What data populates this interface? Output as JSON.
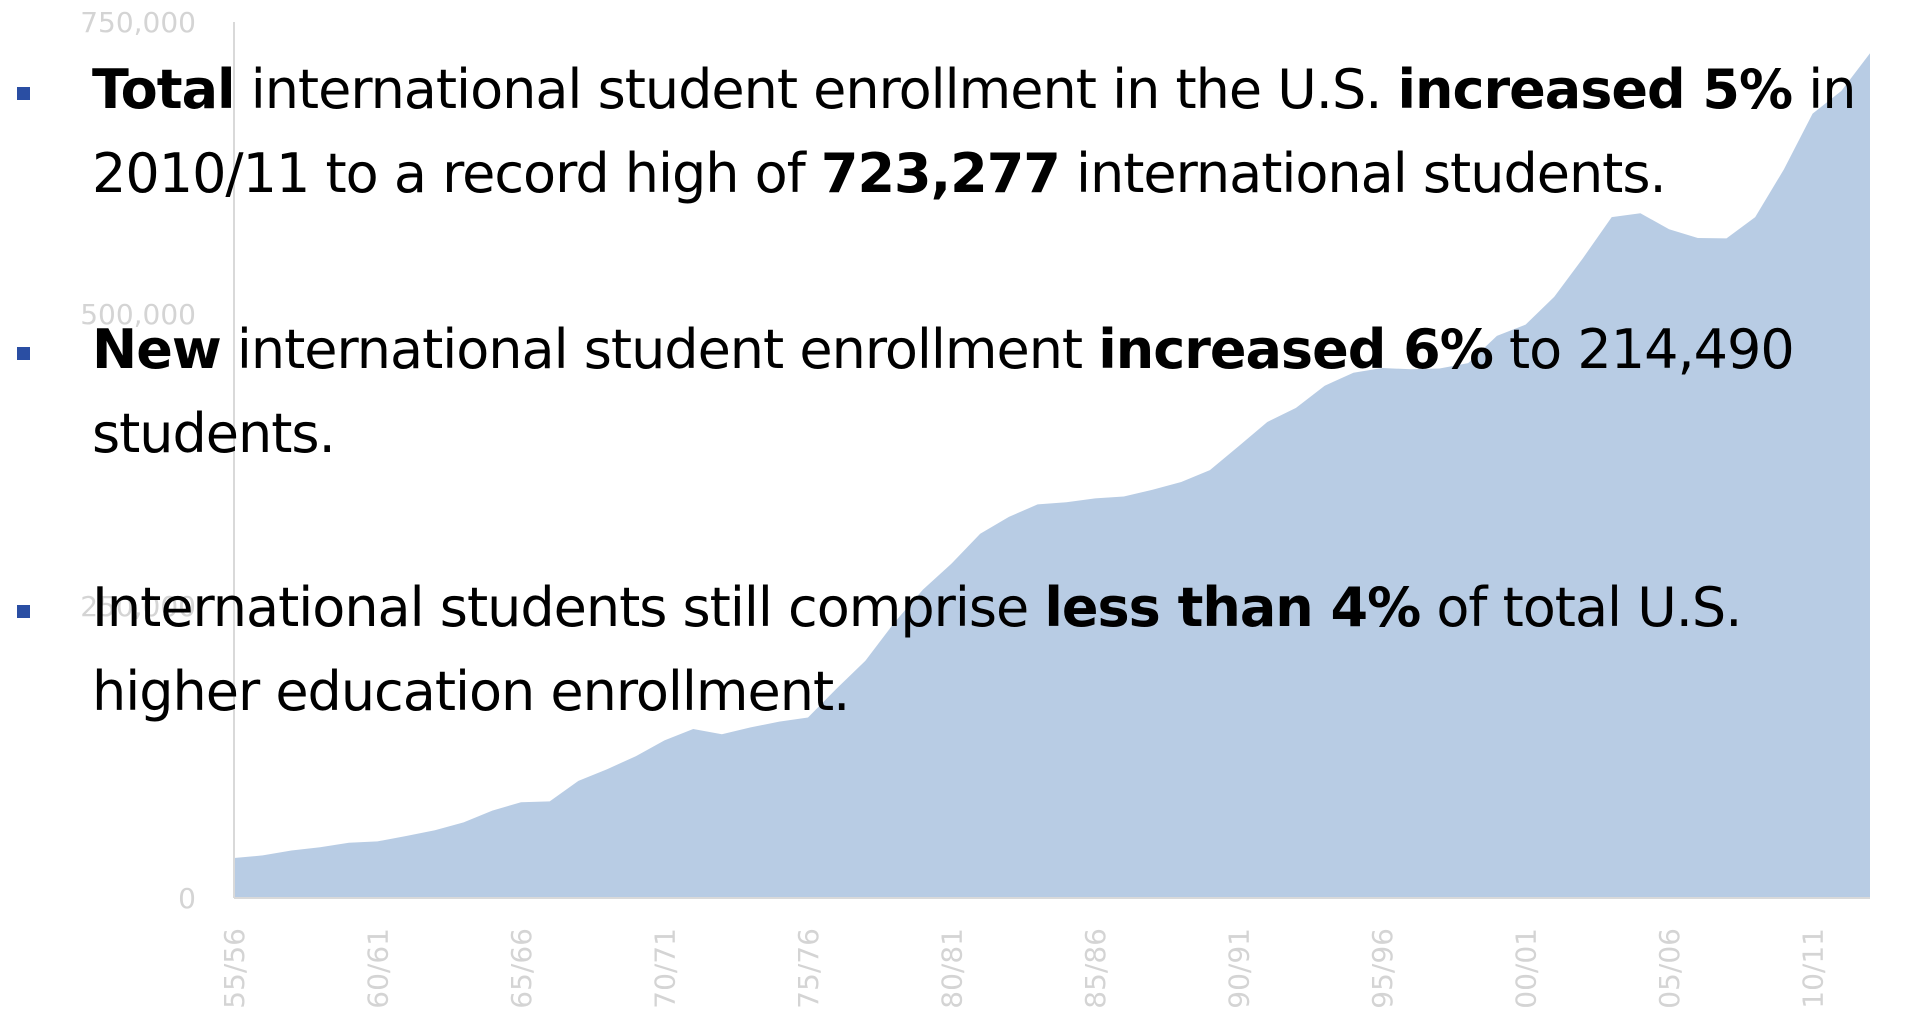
{
  "chart_data": {
    "type": "area",
    "y_ticks": [
      "750,000",
      "500,000",
      "250,000",
      "0"
    ],
    "y_tick_values": [
      750000,
      500000,
      250000,
      0
    ],
    "x_ticks": [
      "55/56",
      "60/61",
      "65/66",
      "70/71",
      "75/76",
      "80/81",
      "85/86",
      "90/91",
      "95/96",
      "00/01",
      "05/06",
      "10/11"
    ],
    "ylim": [
      0,
      750000
    ],
    "color": "#b8cce4",
    "axis_color": "#d9d9d9",
    "values": [
      34232,
      36494,
      40666,
      43391,
      47245,
      48486,
      53107,
      58086,
      64705,
      74814,
      82045,
      82709,
      100262,
      110315,
      121362,
      134959,
      144708,
      140126,
      146097,
      151066,
      154580,
      179344,
      203068,
      235509,
      263938,
      286343,
      311882,
      326299,
      336985,
      338894,
      342113,
      343777,
      349609,
      356187,
      366354,
      386851,
      407529,
      419585,
      438618,
      449749,
      453787,
      452635,
      453374,
      457984,
      481280,
      490933,
      514723,
      547867,
      582996,
      586323,
      572509,
      565039,
      564766,
      582984,
      623805,
      671616,
      690923,
      723277
    ]
  },
  "bullets": [
    {
      "part1_bold": "Total",
      "part2": " international student enrollment in the U.S. ",
      "part3_bold": "increased 5%",
      "part4": " in 2010/11 to a record high of ",
      "part5_bold": "723,277",
      "part6": " international students."
    },
    {
      "part1_bold": "New",
      "part2": " international student enrollment ",
      "part3_bold": "increased 6%",
      "part4": " to 214,490 students."
    },
    {
      "part1": "International students still comprise ",
      "part2_bold": "less than 4%",
      "part3": " of total U.S. higher education enrollment."
    }
  ]
}
